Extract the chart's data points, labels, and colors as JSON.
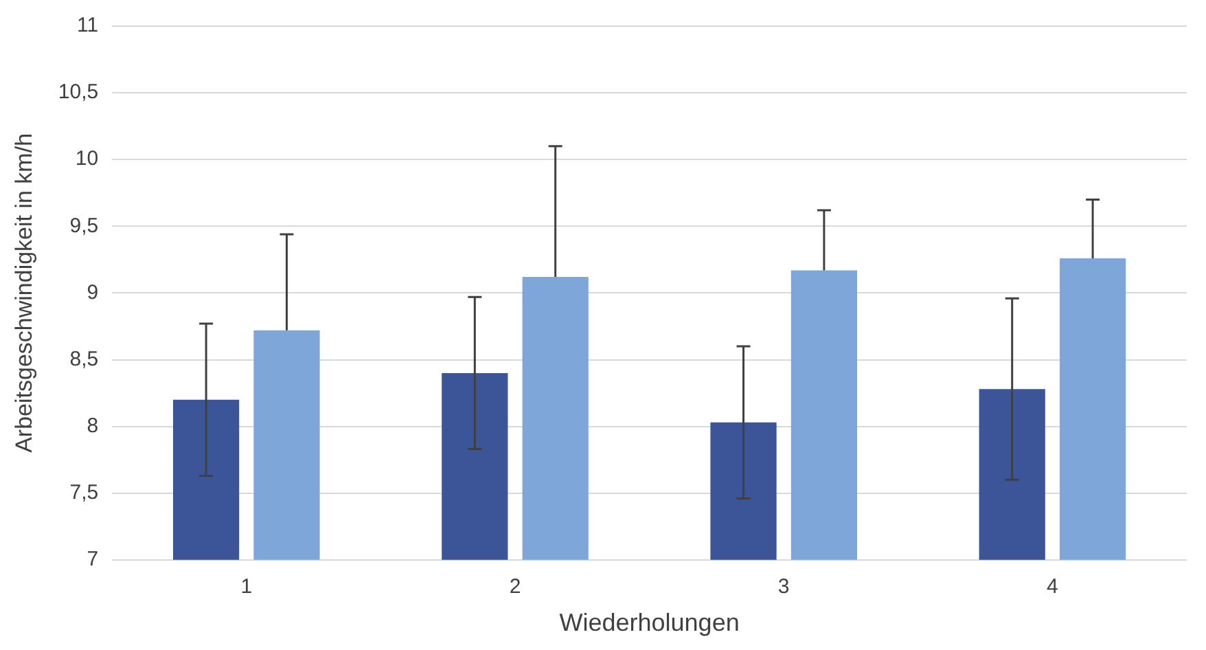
{
  "chart_data": {
    "type": "bar",
    "xlabel": "Wiederholungen",
    "ylabel": "Arbeitsgeschwindigkeit in km/h",
    "categories": [
      "1",
      "2",
      "3",
      "4"
    ],
    "series": [
      {
        "color": "#3b5598",
        "values": [
          8.2,
          8.4,
          8.03,
          8.28
        ],
        "errors": [
          0.57,
          0.57,
          0.57,
          0.68
        ]
      },
      {
        "color": "#7fa6d8",
        "values": [
          8.72,
          9.12,
          9.17,
          9.26
        ],
        "errors": [
          [
            8.72,
            9.44
          ],
          [
            9.12,
            10.1
          ],
          [
            9.17,
            9.62
          ],
          [
            9.26,
            9.7
          ]
        ]
      }
    ],
    "ylim": [
      7,
      11
    ],
    "yticks": [
      {
        "value": 7,
        "label": "7"
      },
      {
        "value": 7.5,
        "label": "7,5"
      },
      {
        "value": 8,
        "label": "8"
      },
      {
        "value": 8.5,
        "label": "8,5"
      },
      {
        "value": 9,
        "label": "9"
      },
      {
        "value": 9.5,
        "label": "9,5"
      },
      {
        "value": 10,
        "label": "10"
      },
      {
        "value": 10.5,
        "label": "10,5"
      },
      {
        "value": 11,
        "label": "11"
      }
    ],
    "grid": "y",
    "legend": false
  }
}
